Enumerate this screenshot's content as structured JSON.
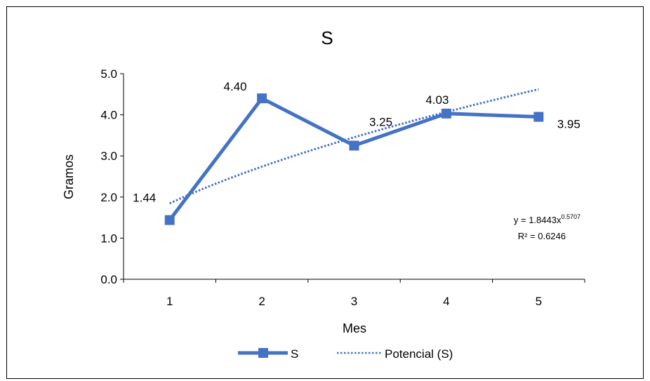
{
  "chart_data": {
    "type": "line",
    "title": "S",
    "xlabel": "Mes",
    "ylabel": "Gramos",
    "categories": [
      "1",
      "2",
      "3",
      "4",
      "5"
    ],
    "x": [
      1,
      2,
      3,
      4,
      5
    ],
    "series": [
      {
        "name": "S",
        "values": [
          1.44,
          4.4,
          3.25,
          4.03,
          3.95
        ],
        "data_labels": [
          "1.44",
          "4.40",
          "3.25",
          "4.03",
          "3.95"
        ],
        "color": "#4472C4",
        "marker": "square"
      }
    ],
    "trendline": {
      "name": "Potencial (S)",
      "type": "power",
      "a": 1.8443,
      "b": 0.5707,
      "color": "#4472C4",
      "style": "dotted",
      "equation_prefix": "y = 1.8443x",
      "equation_exponent": "0.5707",
      "r_squared_text": "R² = 0.6246"
    },
    "y_ticks": [
      "0.0",
      "1.0",
      "2.0",
      "3.0",
      "4.0",
      "5.0"
    ],
    "ylim": [
      0,
      5
    ],
    "grid": false,
    "legend_position": "bottom"
  }
}
